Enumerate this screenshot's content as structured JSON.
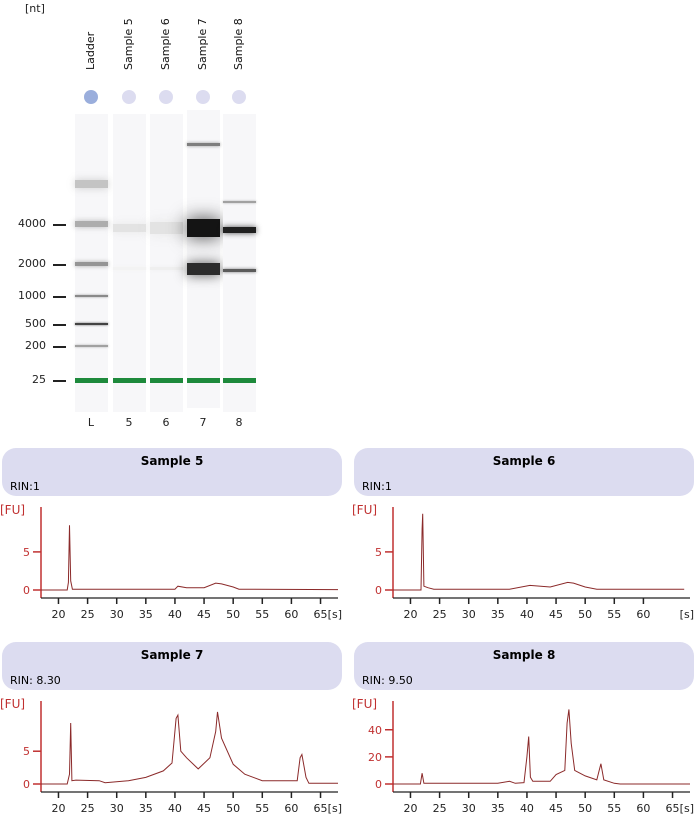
{
  "gel": {
    "unit_label": "[nt]",
    "lanes": [
      {
        "header": "Ladder",
        "number": "L",
        "dot_color": "#9aaedc"
      },
      {
        "header": "Sample 5",
        "number": "5",
        "dot_color": "#dcdcf0"
      },
      {
        "header": "Sample 6",
        "number": "6",
        "dot_color": "#dcdcf0"
      },
      {
        "header": "Sample 7",
        "number": "7",
        "dot_color": "#dcdcf0"
      },
      {
        "header": "Sample 8",
        "number": "8",
        "dot_color": "#dcdcf0"
      }
    ],
    "size_labels": [
      "4000",
      "2000",
      "1000",
      "500",
      "200",
      "25"
    ],
    "marker_color": "#1e8a3c",
    "bands": [
      [
        {
          "nt": 6000,
          "i": 0.25,
          "w": 8
        },
        {
          "nt": 4000,
          "i": 0.35,
          "w": 6
        },
        {
          "nt": 2000,
          "i": 0.45,
          "w": 4
        },
        {
          "nt": 1000,
          "i": 0.5,
          "w": 2
        },
        {
          "nt": 500,
          "i": 0.8,
          "w": 2
        },
        {
          "nt": 200,
          "i": 0.4,
          "w": 2
        }
      ],
      [
        {
          "nt": 3700,
          "i": 0.12,
          "w": 8
        },
        {
          "nt": 1800,
          "i": 0.05,
          "w": 3
        }
      ],
      [
        {
          "nt": 3700,
          "i": 0.12,
          "w": 12
        },
        {
          "nt": 1800,
          "i": 0.07,
          "w": 3
        }
      ],
      [
        {
          "nt": 9000,
          "i": 0.55,
          "w": 3
        },
        {
          "nt": 3700,
          "i": 1.0,
          "w": 18
        },
        {
          "nt": 1800,
          "i": 0.9,
          "w": 12
        }
      ],
      [
        {
          "nt": 5000,
          "i": 0.4,
          "w": 2
        },
        {
          "nt": 3600,
          "i": 0.95,
          "w": 6
        },
        {
          "nt": 1750,
          "i": 0.7,
          "w": 3
        }
      ]
    ]
  },
  "chart_data": [
    {
      "type": "line",
      "title": "Sample 5",
      "rin": "RIN:1",
      "ylabel": "[FU]",
      "xlabel": "[s]",
      "xlim": [
        17,
        68
      ],
      "ylim": [
        0,
        10.5
      ],
      "yticks": [
        0,
        5
      ],
      "xticks": [
        20,
        25,
        30,
        35,
        40,
        45,
        50,
        55,
        60,
        65
      ],
      "points": [
        [
          17,
          0
        ],
        [
          21.5,
          0
        ],
        [
          21.7,
          1
        ],
        [
          21.9,
          8.5
        ],
        [
          22.1,
          1.2
        ],
        [
          22.4,
          0.1
        ],
        [
          27,
          0.1
        ],
        [
          40,
          0.1
        ],
        [
          40.5,
          0.5
        ],
        [
          42,
          0.3
        ],
        [
          45,
          0.3
        ],
        [
          47,
          0.9
        ],
        [
          48,
          0.8
        ],
        [
          50,
          0.4
        ],
        [
          51,
          0.1
        ],
        [
          68,
          0.05
        ]
      ]
    },
    {
      "type": "line",
      "title": "Sample 6",
      "rin": "RIN:1",
      "ylabel": "[FU]",
      "xlabel": "[s]",
      "xlim": [
        17,
        68
      ],
      "ylim": [
        0,
        10.5
      ],
      "yticks": [
        0,
        5
      ],
      "xticks": [
        20,
        25,
        30,
        35,
        40,
        45,
        50,
        55,
        60
      ],
      "points": [
        [
          17,
          0
        ],
        [
          21.8,
          0
        ],
        [
          22,
          8
        ],
        [
          22.1,
          10
        ],
        [
          22.3,
          0.5
        ],
        [
          23,
          0.3
        ],
        [
          24,
          0.1
        ],
        [
          37,
          0.1
        ],
        [
          40.5,
          0.6
        ],
        [
          44,
          0.4
        ],
        [
          47,
          1
        ],
        [
          48,
          0.9
        ],
        [
          50,
          0.4
        ],
        [
          52,
          0.1
        ],
        [
          67,
          0.1
        ]
      ]
    },
    {
      "type": "line",
      "title": "Sample 7",
      "rin": "RIN: 8.30",
      "ylabel": "[FU]",
      "xlabel": "[s]",
      "xlim": [
        17,
        68
      ],
      "ylim": [
        0,
        12.2
      ],
      "yticks": [
        0,
        5
      ],
      "xticks": [
        20,
        25,
        30,
        35,
        40,
        45,
        50,
        55,
        60,
        65
      ],
      "points": [
        [
          17,
          0
        ],
        [
          21.5,
          0
        ],
        [
          21.9,
          1.5
        ],
        [
          22.1,
          9.3
        ],
        [
          22.3,
          0.5
        ],
        [
          23,
          0.6
        ],
        [
          27,
          0.5
        ],
        [
          28,
          0.2
        ],
        [
          32,
          0.5
        ],
        [
          35,
          1
        ],
        [
          38,
          2
        ],
        [
          39.5,
          3.2
        ],
        [
          40.2,
          10
        ],
        [
          40.5,
          10.5
        ],
        [
          41,
          5
        ],
        [
          42,
          4
        ],
        [
          44,
          2.3
        ],
        [
          46,
          4
        ],
        [
          47,
          8
        ],
        [
          47.3,
          11
        ],
        [
          48,
          7
        ],
        [
          50,
          3
        ],
        [
          52,
          1.5
        ],
        [
          55,
          0.5
        ],
        [
          61,
          0.5
        ],
        [
          61.5,
          4
        ],
        [
          61.8,
          4.5
        ],
        [
          62.5,
          1
        ],
        [
          63,
          0.1
        ],
        [
          68,
          0.1
        ]
      ]
    },
    {
      "type": "line",
      "title": "Sample 8",
      "rin": "RIN: 9.50",
      "ylabel": "[FU]",
      "xlabel": "[s]",
      "xlim": [
        17,
        68
      ],
      "ylim": [
        0,
        59
      ],
      "yticks": [
        0,
        20,
        40
      ],
      "xticks": [
        20,
        25,
        30,
        35,
        40,
        45,
        50,
        55,
        60,
        65
      ],
      "points": [
        [
          17,
          0
        ],
        [
          21.7,
          0
        ],
        [
          22,
          8
        ],
        [
          22.3,
          0.5
        ],
        [
          35,
          0.5
        ],
        [
          37,
          2
        ],
        [
          38,
          0.5
        ],
        [
          39.5,
          1
        ],
        [
          40,
          20
        ],
        [
          40.3,
          35
        ],
        [
          40.6,
          5
        ],
        [
          41,
          2
        ],
        [
          44,
          2
        ],
        [
          45,
          7
        ],
        [
          46.5,
          10
        ],
        [
          46.9,
          45
        ],
        [
          47.2,
          55
        ],
        [
          47.6,
          30
        ],
        [
          48.2,
          10
        ],
        [
          50,
          6
        ],
        [
          52,
          3
        ],
        [
          52.4,
          10
        ],
        [
          52.7,
          15
        ],
        [
          53.2,
          3
        ],
        [
          55,
          0.5
        ],
        [
          56,
          0
        ],
        [
          68,
          0
        ]
      ]
    }
  ],
  "colors": {
    "axis": "#c03030",
    "trace": "#8b2a2a"
  }
}
